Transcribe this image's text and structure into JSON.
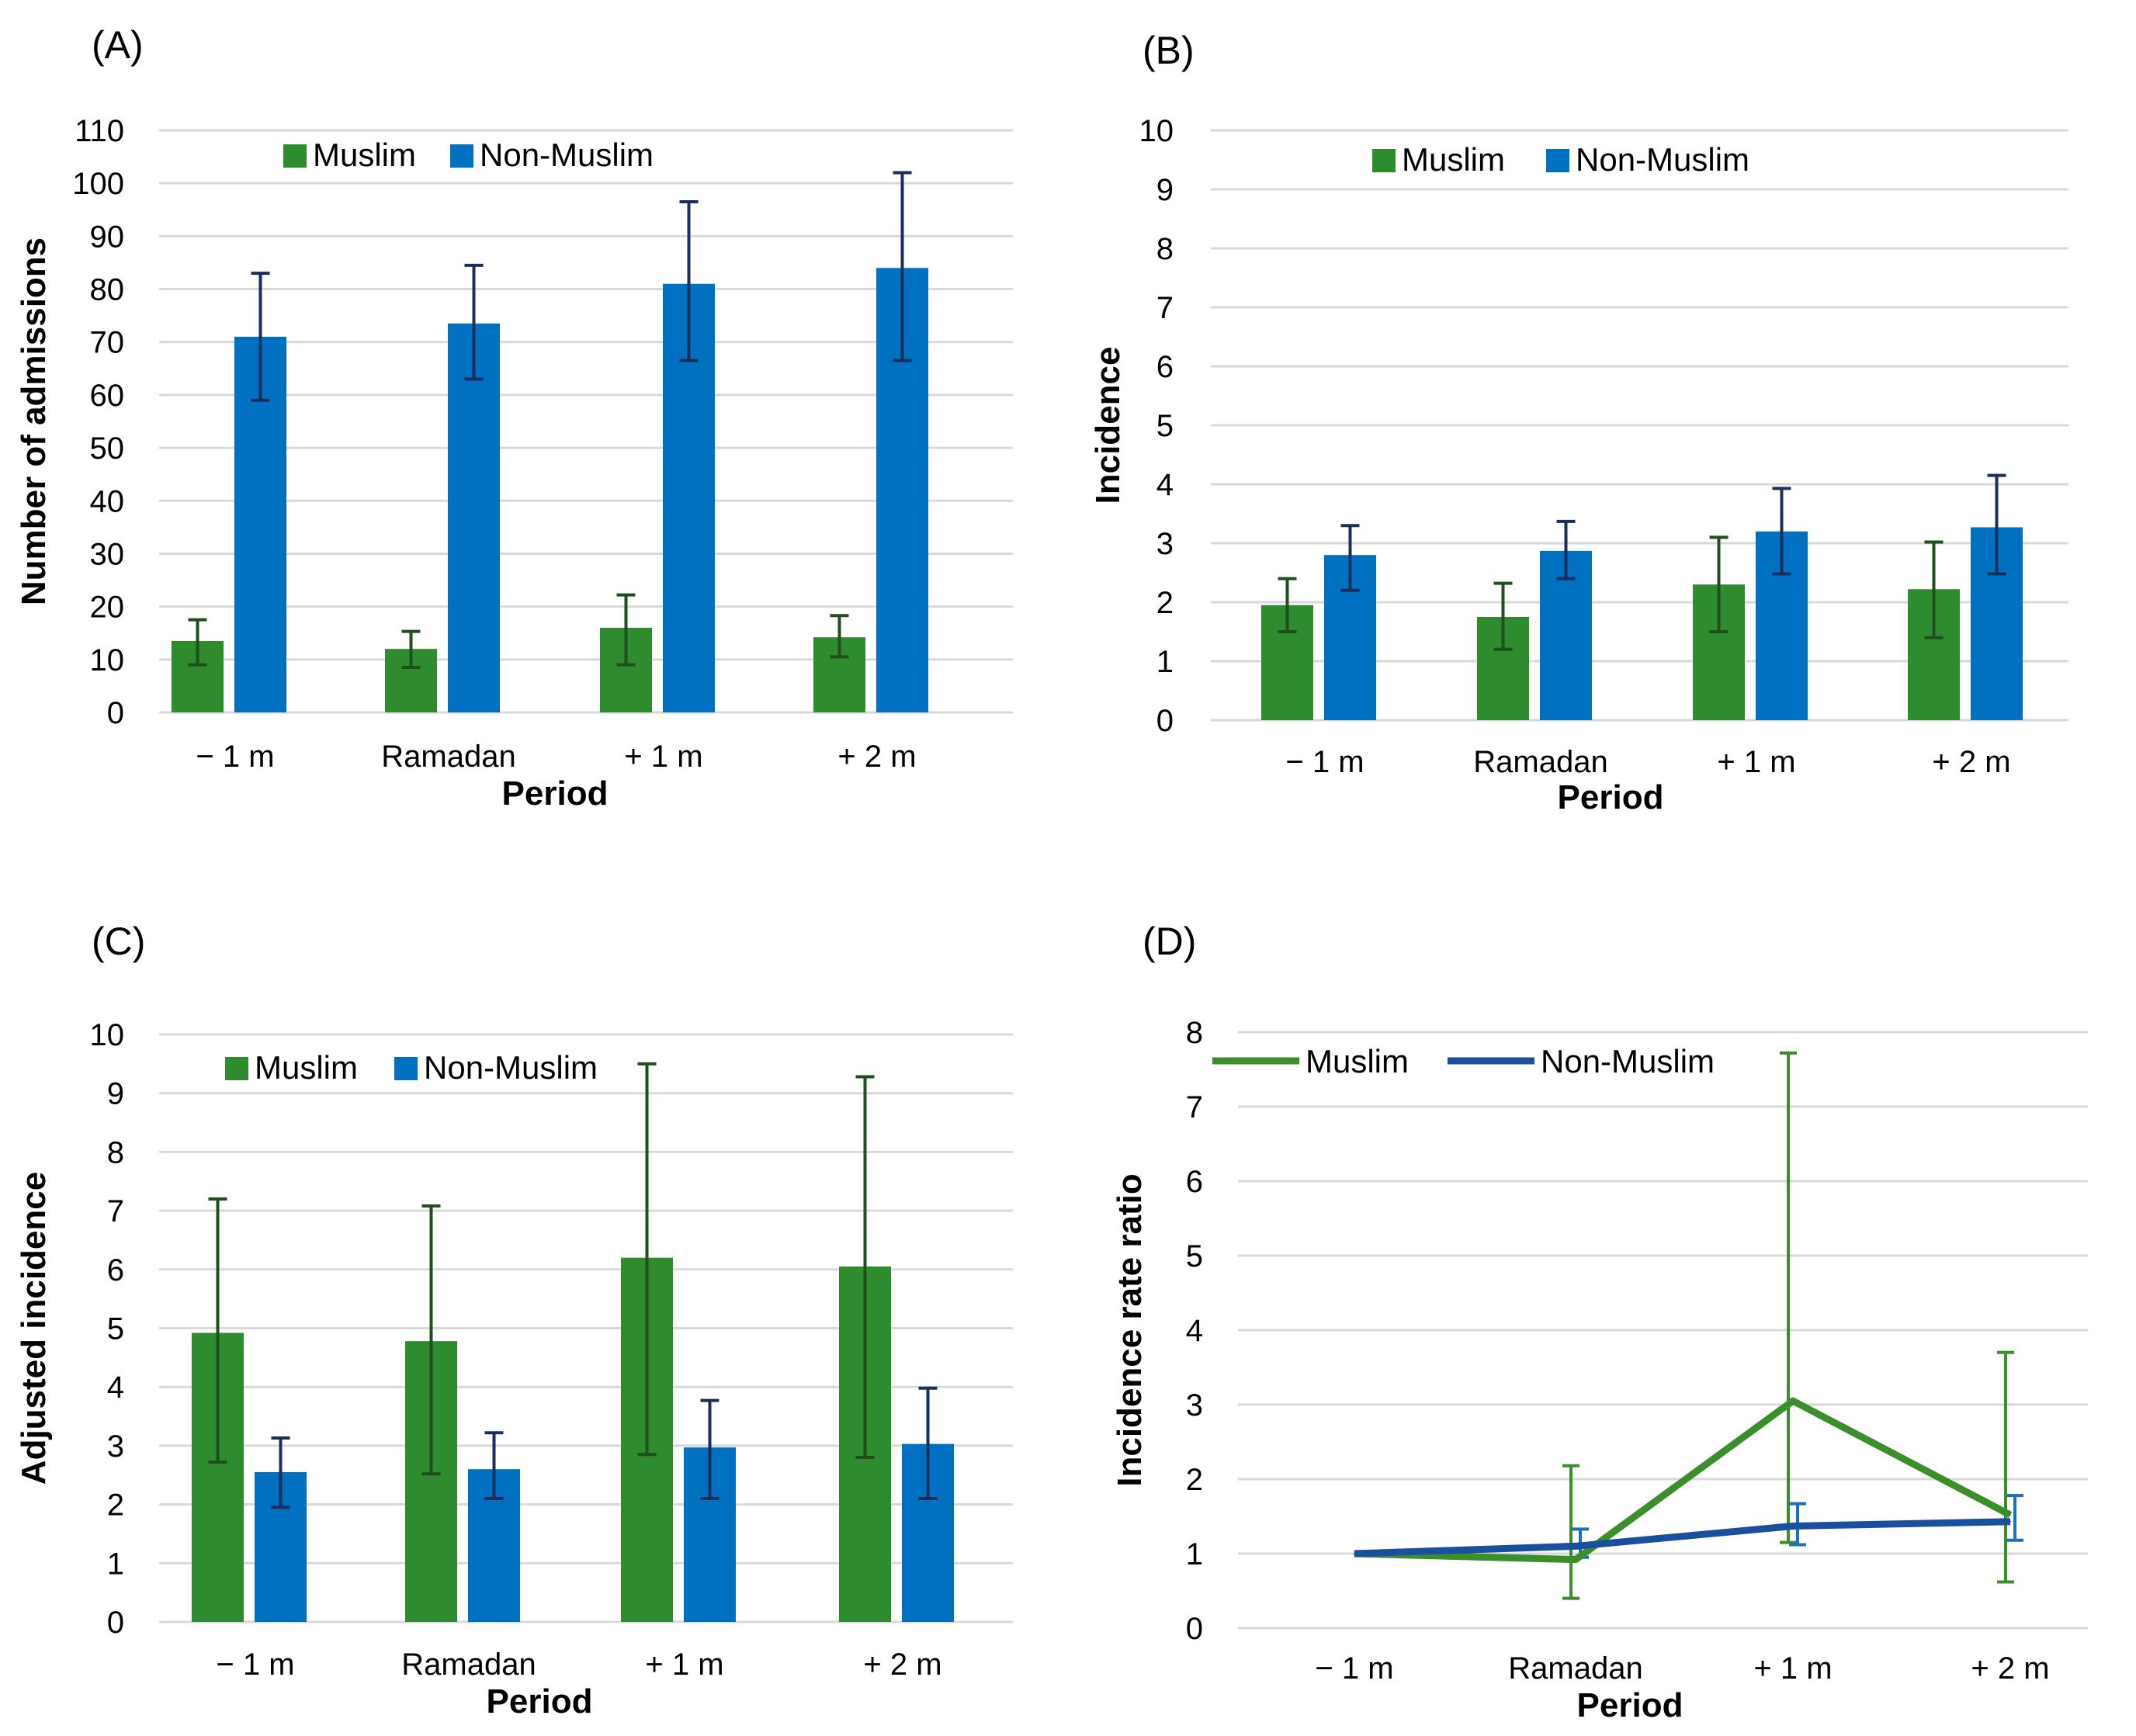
{
  "chart_data": [
    {
      "panel": "(A)",
      "type": "bar",
      "categories": [
        "− 1 m",
        "Ramadan",
        "+ 1 m",
        "+ 2 m"
      ],
      "xlabel": "Period",
      "ylabel": "Number of admissions",
      "ylim": [
        0,
        110
      ],
      "yticks": [
        "0",
        "10",
        "20",
        "30",
        "40",
        "50",
        "60",
        "70",
        "80",
        "90",
        "100",
        "110"
      ],
      "grid": true,
      "legend_position": "top-left",
      "series": [
        {
          "name": "Muslim",
          "color": "#2e8b2e",
          "err_color": "#1f4e1f",
          "values": [
            13.5,
            12,
            16,
            14.2
          ],
          "err_low": [
            9,
            8.5,
            9,
            10.5
          ],
          "err_high": [
            17.5,
            15.3,
            22.2,
            18.3
          ]
        },
        {
          "name": "Non-Muslim",
          "color": "#0070c0",
          "err_color": "#1a2e5e",
          "values": [
            71,
            73.5,
            81,
            84
          ],
          "err_low": [
            59,
            63,
            66.5,
            66.5
          ],
          "err_high": [
            83,
            84.5,
            96.5,
            102
          ]
        }
      ]
    },
    {
      "panel": "(B)",
      "type": "bar",
      "categories": [
        "− 1 m",
        "Ramadan",
        "+ 1 m",
        "+ 2 m"
      ],
      "xlabel": "Period",
      "ylabel": "Incidence",
      "ylim": [
        0,
        10
      ],
      "yticks": [
        "0",
        "1",
        "2",
        "3",
        "4",
        "5",
        "6",
        "7",
        "8",
        "9",
        "10"
      ],
      "grid": true,
      "legend_position": "top-center",
      "series": [
        {
          "name": "Muslim",
          "color": "#2e8b2e",
          "err_color": "#1f4e1f",
          "values": [
            1.95,
            1.75,
            2.3,
            2.22
          ],
          "err_low": [
            1.5,
            1.2,
            1.5,
            1.4
          ],
          "err_high": [
            2.4,
            2.32,
            3.1,
            3.02
          ]
        },
        {
          "name": "Non-Muslim",
          "color": "#0070c0",
          "err_color": "#1a2e5e",
          "values": [
            2.8,
            2.87,
            3.2,
            3.27
          ],
          "err_low": [
            2.2,
            2.4,
            2.48,
            2.48
          ],
          "err_high": [
            3.3,
            3.37,
            3.93,
            4.15
          ]
        }
      ]
    },
    {
      "panel": "(C)",
      "type": "bar",
      "categories": [
        "− 1 m",
        "Ramadan",
        "+ 1 m",
        "+ 2 m"
      ],
      "xlabel": "Period",
      "ylabel": "Adjusted incidence",
      "ylim": [
        0,
        10
      ],
      "yticks": [
        "0",
        "1",
        "2",
        "3",
        "4",
        "5",
        "6",
        "7",
        "8",
        "9",
        "10"
      ],
      "grid": true,
      "legend_position": "top-left",
      "series": [
        {
          "name": "Muslim",
          "color": "#2e8b2e",
          "err_color": "#1f4e1f",
          "values": [
            4.92,
            4.78,
            6.2,
            6.05
          ],
          "err_low": [
            2.72,
            2.52,
            2.85,
            2.8
          ],
          "err_high": [
            7.2,
            7.08,
            9.5,
            9.28
          ]
        },
        {
          "name": "Non-Muslim",
          "color": "#0070c0",
          "err_color": "#1a2e5e",
          "values": [
            2.55,
            2.6,
            2.97,
            3.03
          ],
          "err_low": [
            1.95,
            2.1,
            2.1,
            2.1
          ],
          "err_high": [
            3.13,
            3.22,
            3.77,
            3.98
          ]
        }
      ]
    },
    {
      "panel": "(D)",
      "type": "line",
      "categories": [
        "− 1 m",
        "Ramadan",
        "+ 1 m",
        "+ 2 m"
      ],
      "xlabel": "Period",
      "ylabel": "Incidence rate ratio",
      "ylim": [
        0,
        8
      ],
      "yticks": [
        "0",
        "1",
        "2",
        "3",
        "4",
        "5",
        "6",
        "7",
        "8"
      ],
      "grid": true,
      "legend_position": "top-left",
      "series": [
        {
          "name": "Muslim",
          "color": "#3a8f2a",
          "values": [
            1.0,
            0.92,
            3.05,
            1.52
          ],
          "err_low": [
            1.0,
            0.4,
            1.15,
            0.62
          ],
          "err_high": [
            1.0,
            2.18,
            7.72,
            3.7
          ]
        },
        {
          "name": "Non-Muslim",
          "color": "#1a4f9c",
          "err_color": "#1f6fc0",
          "values": [
            1.0,
            1.1,
            1.37,
            1.43
          ],
          "err_low": [
            1.0,
            0.95,
            1.12,
            1.18
          ],
          "err_high": [
            1.0,
            1.33,
            1.67,
            1.78
          ]
        }
      ]
    }
  ]
}
